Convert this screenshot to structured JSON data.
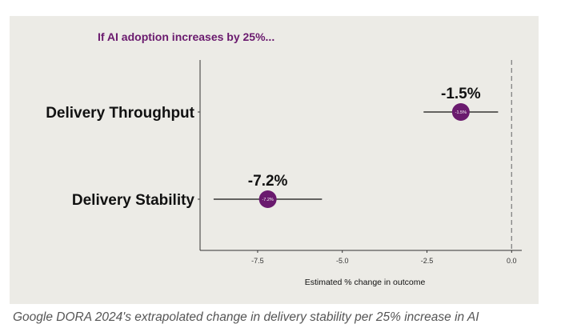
{
  "colors": {
    "accent": "#6a1a6e",
    "axis": "#333333",
    "panel_bg": "#ecebe6",
    "reference_line": "#888888"
  },
  "caption": "Google DORA 2024's extrapolated change in delivery stability per 25% increase in AI",
  "chart_data": {
    "type": "forest",
    "title": "If AI adoption increases by 25%...",
    "xlabel": "Estimated % change in outcome",
    "ylabel": "",
    "xlim": [
      -9.2,
      0.3
    ],
    "xticks": [
      -7.5,
      -5.0,
      -2.5,
      0.0
    ],
    "xtick_labels": [
      "-7.5",
      "-5.0",
      "-2.5",
      "0.0"
    ],
    "reference_line": 0.0,
    "series": [
      {
        "category": "Delivery Throughput",
        "value": -1.5,
        "ci_low": -2.6,
        "ci_high": -0.4,
        "label": "-1.5%",
        "dot_label": "-1.5%"
      },
      {
        "category": "Delivery Stability",
        "value": -7.2,
        "ci_low": -8.8,
        "ci_high": -5.6,
        "label": "-7.2%",
        "dot_label": "-7.2%"
      }
    ]
  }
}
